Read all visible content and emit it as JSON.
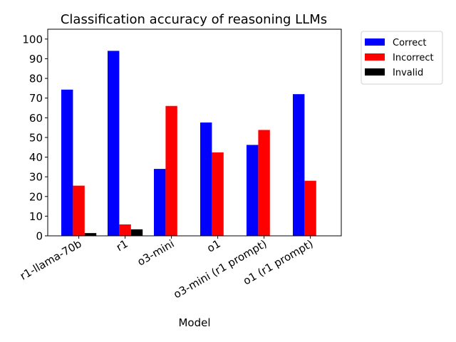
{
  "chart_data": {
    "type": "bar",
    "title": "Classification accuracy of reasoning LLMs",
    "xlabel": "Model",
    "ylabel": "",
    "categories": [
      "r1-llama-70b",
      "r1",
      "o3-mini",
      "o1",
      "o3-mini (r1 prompt)",
      "o1 (r1 prompt)"
    ],
    "ylim": [
      0,
      105
    ],
    "yticks": [
      0,
      10,
      20,
      30,
      40,
      50,
      60,
      70,
      80,
      90,
      100
    ],
    "grid": false,
    "legend_position": "outside-top-right",
    "series": [
      {
        "name": "Correct",
        "color": "#0000ff",
        "values": [
          74.3,
          94.0,
          34.0,
          57.6,
          46.2,
          72.0
        ]
      },
      {
        "name": "Incorrect",
        "color": "#ff0000",
        "values": [
          25.5,
          5.8,
          66.0,
          42.4,
          53.8,
          28.0
        ]
      },
      {
        "name": "Invalid",
        "color": "#000000",
        "values": [
          1.4,
          3.3,
          0,
          0,
          0,
          0
        ]
      }
    ]
  }
}
